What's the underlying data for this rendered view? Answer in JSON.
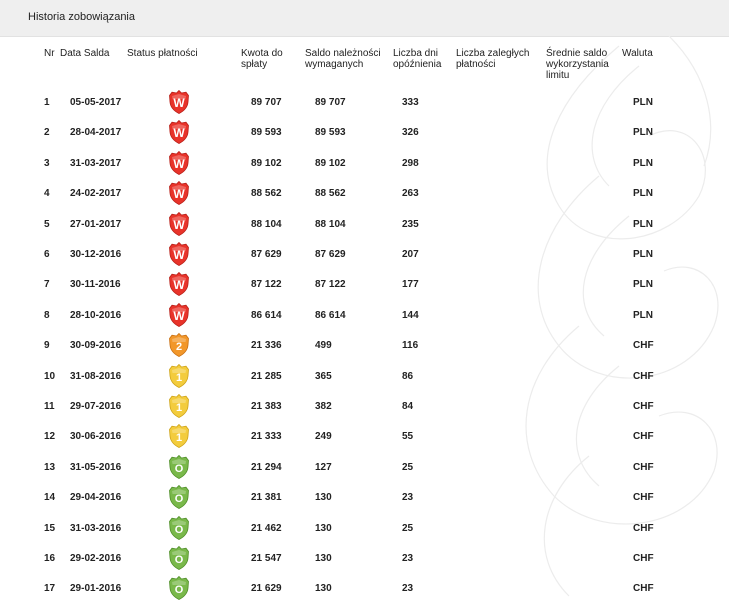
{
  "section": {
    "title": "Historia zobowiązania"
  },
  "table": {
    "headers": {
      "nr": "Nr",
      "date": "Data Salda",
      "status": "Status płatności",
      "amount": "Kwota do\nspłaty",
      "due": "Saldo należności\nwymaganych",
      "days": "Liczba dni\nopóźnienia",
      "overdue": "Liczba zaległych\npłatności",
      "avg": "Średnie saldo\nwykorzystania\nlimitu",
      "currency": "Waluta"
    },
    "rows": [
      {
        "nr": "1",
        "date": "05-05-2017",
        "status": "W",
        "amount": "89 707",
        "due": "89 707",
        "days": "333",
        "currency": "PLN"
      },
      {
        "nr": "2",
        "date": "28-04-2017",
        "status": "W",
        "amount": "89 593",
        "due": "89 593",
        "days": "326",
        "currency": "PLN"
      },
      {
        "nr": "3",
        "date": "31-03-2017",
        "status": "W",
        "amount": "89 102",
        "due": "89 102",
        "days": "298",
        "currency": "PLN"
      },
      {
        "nr": "4",
        "date": "24-02-2017",
        "status": "W",
        "amount": "88 562",
        "due": "88 562",
        "days": "263",
        "currency": "PLN"
      },
      {
        "nr": "5",
        "date": "27-01-2017",
        "status": "W",
        "amount": "88 104",
        "due": "88 104",
        "days": "235",
        "currency": "PLN"
      },
      {
        "nr": "6",
        "date": "30-12-2016",
        "status": "W",
        "amount": "87 629",
        "due": "87 629",
        "days": "207",
        "currency": "PLN"
      },
      {
        "nr": "7",
        "date": "30-11-2016",
        "status": "W",
        "amount": "87 122",
        "due": "87 122",
        "days": "177",
        "currency": "PLN"
      },
      {
        "nr": "8",
        "date": "28-10-2016",
        "status": "W",
        "amount": "86 614",
        "due": "86 614",
        "days": "144",
        "currency": "PLN"
      },
      {
        "nr": "9",
        "date": "30-09-2016",
        "status": "2",
        "amount": "21 336",
        "due": "499",
        "days": "116",
        "currency": "CHF"
      },
      {
        "nr": "10",
        "date": "31-08-2016",
        "status": "1",
        "amount": "21 285",
        "due": "365",
        "days": "86",
        "currency": "CHF"
      },
      {
        "nr": "11",
        "date": "29-07-2016",
        "status": "1",
        "amount": "21 383",
        "due": "382",
        "days": "84",
        "currency": "CHF"
      },
      {
        "nr": "12",
        "date": "30-06-2016",
        "status": "1",
        "amount": "21 333",
        "due": "249",
        "days": "55",
        "currency": "CHF"
      },
      {
        "nr": "13",
        "date": "31-05-2016",
        "status": "O",
        "amount": "21 294",
        "due": "127",
        "days": "25",
        "currency": "CHF"
      },
      {
        "nr": "14",
        "date": "29-04-2016",
        "status": "O",
        "amount": "21 381",
        "due": "130",
        "days": "23",
        "currency": "CHF"
      },
      {
        "nr": "15",
        "date": "31-03-2016",
        "status": "O",
        "amount": "21 462",
        "due": "130",
        "days": "25",
        "currency": "CHF"
      },
      {
        "nr": "16",
        "date": "29-02-2016",
        "status": "O",
        "amount": "21 547",
        "due": "130",
        "days": "23",
        "currency": "CHF"
      },
      {
        "nr": "17",
        "date": "29-01-2016",
        "status": "O",
        "amount": "21 629",
        "due": "130",
        "days": "23",
        "currency": "CHF"
      }
    ]
  },
  "status_colors": {
    "W": {
      "fill": "#e8332a",
      "dark": "#b81f18",
      "text": "#ffffff"
    },
    "2": {
      "fill": "#f2972a",
      "dark": "#c96f10",
      "text": "#ffffff"
    },
    "1": {
      "fill": "#f3cc3d",
      "dark": "#cfa416",
      "text": "#ffffff"
    },
    "O": {
      "fill": "#79b84a",
      "dark": "#4f8f27",
      "text": "#ffffff"
    }
  }
}
